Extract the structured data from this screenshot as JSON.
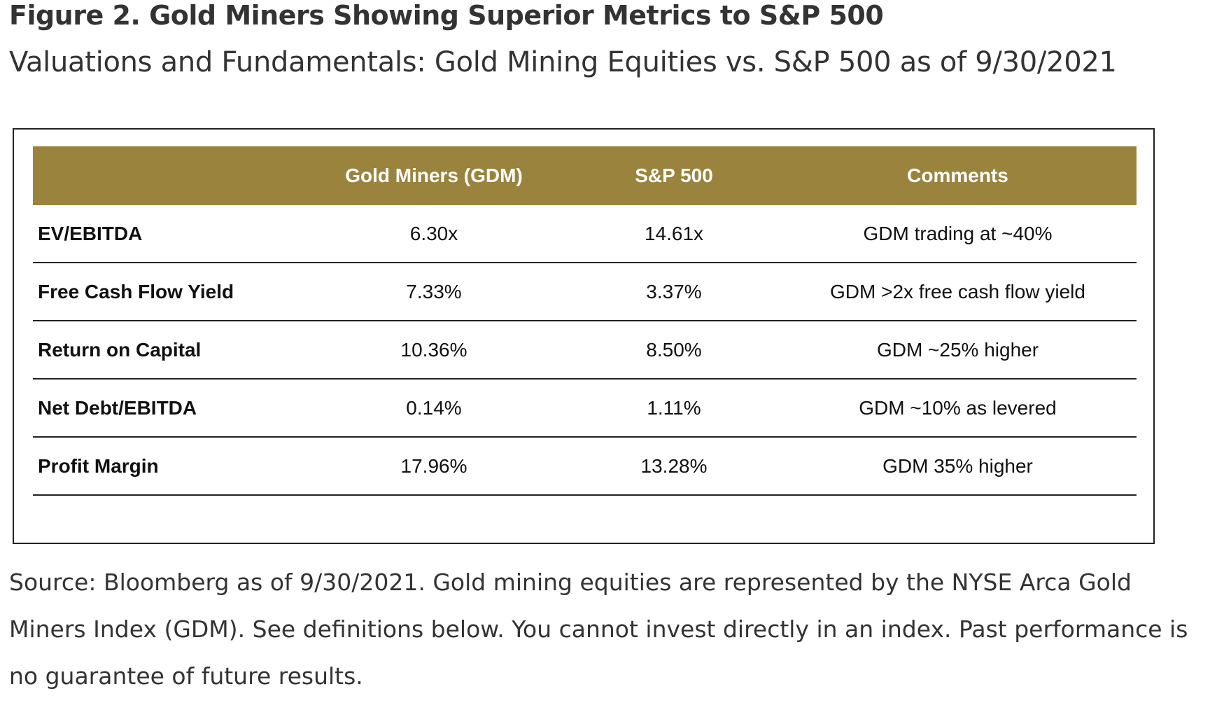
{
  "header": {
    "title": "Figure 2. Gold Miners Showing Superior Metrics to S&P 500",
    "subtitle": "Valuations and Fundamentals: Gold Mining Equities vs. S&P 500 as of 9/30/2021"
  },
  "table": {
    "columns": [
      "",
      "Gold Miners (GDM)",
      "S&P 500",
      "Comments"
    ],
    "rows": [
      [
        "EV/EBITDA",
        "6.30x",
        "14.61x",
        "GDM trading at ~40%"
      ],
      [
        "Free Cash Flow Yield",
        "7.33%",
        "3.37%",
        "GDM >2x free cash flow yield"
      ],
      [
        "Return on Capital",
        "10.36%",
        "8.50%",
        "GDM ~25% higher"
      ],
      [
        "Net Debt/EBITDA",
        "0.14%",
        "1.11%",
        "GDM ~10% as levered"
      ],
      [
        "Profit Margin",
        "17.96%",
        "13.28%",
        "GDM 35% higher"
      ]
    ]
  },
  "source": "Source: Bloomberg as of 9/30/2021. Gold mining equities are represented by the NYSE Arca Gold Miners Index (GDM). See definitions below. You cannot invest directly in an index. Past performance is no guarantee of future results."
}
